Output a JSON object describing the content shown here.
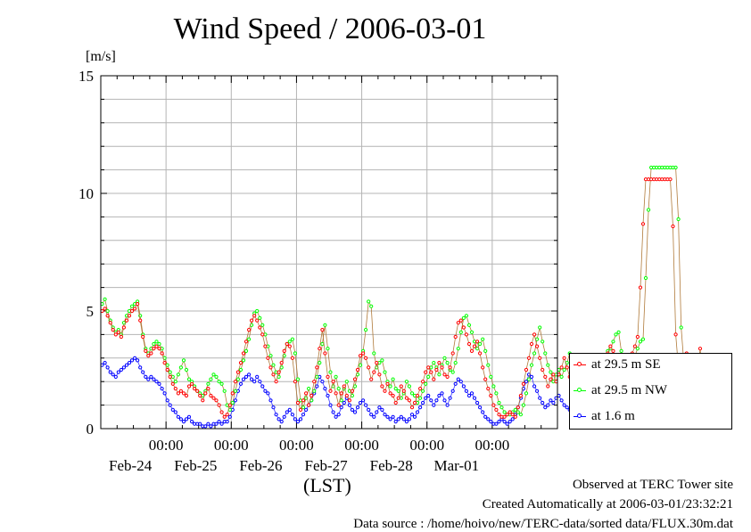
{
  "chart_data": {
    "type": "line",
    "title": "Wind Speed / 2006-03-01",
    "ylabel": "[m/s]",
    "xlabel": "(LST)",
    "ylim": [
      0,
      15
    ],
    "y_ticks": [
      "0",
      "5",
      "10",
      "15"
    ],
    "xlim_days": [
      "2006-02-23 00:00",
      "2006-03-02 00:00"
    ],
    "x_ticks": [
      {
        "time": "00:00",
        "date": "Feb-24"
      },
      {
        "time": "00:00",
        "date": "Feb-25"
      },
      {
        "time": "00:00",
        "date": "Feb-26"
      },
      {
        "time": "00:00",
        "date": "Feb-27"
      },
      {
        "time": "00:00",
        "date": "Feb-28"
      },
      {
        "time": "00:00",
        "date": "Mar-01"
      }
    ],
    "grid": true,
    "legend_position": "bottom-right",
    "interval_hours": 1,
    "series": [
      {
        "name": "at 29.5 m SE",
        "color": "#ff0000",
        "values": [
          5.0,
          5.1,
          4.8,
          4.5,
          4.2,
          4.0,
          4.1,
          3.9,
          4.3,
          4.6,
          4.8,
          5.0,
          5.1,
          5.3,
          4.6,
          3.9,
          3.3,
          3.1,
          3.2,
          3.4,
          3.5,
          3.4,
          3.2,
          2.8,
          2.5,
          2.2,
          1.9,
          1.7,
          1.5,
          1.6,
          1.5,
          1.4,
          1.8,
          1.9,
          1.7,
          1.6,
          1.4,
          1.2,
          1.5,
          1.7,
          1.4,
          1.3,
          1.2,
          1.0,
          0.7,
          0.5,
          0.6,
          1.0,
          1.5,
          2.0,
          2.4,
          2.8,
          3.2,
          3.7,
          4.2,
          4.6,
          4.8,
          4.6,
          4.3,
          4.0,
          3.5,
          3.0,
          2.6,
          2.3,
          2.0,
          2.4,
          2.8,
          3.3,
          3.6,
          3.5,
          3.0,
          2.0,
          1.1,
          0.8,
          1.2,
          1.5,
          1.0,
          1.4,
          2.0,
          2.6,
          3.4,
          4.2,
          3.2,
          2.2,
          1.6,
          2.0,
          1.5,
          1.0,
          1.5,
          1.8,
          1.4,
          1.2,
          1.6,
          2.1,
          2.5,
          3.1,
          3.2,
          3.0,
          2.6,
          2.1,
          2.4,
          2.8,
          2.3,
          1.8,
          1.6,
          1.9,
          1.5,
          1.4,
          1.1,
          1.3,
          1.8,
          1.6,
          1.3,
          1.2,
          0.9,
          1.1,
          1.4,
          1.7,
          2.0,
          2.4,
          2.6,
          2.4,
          2.1,
          2.5,
          2.8,
          2.6,
          2.3,
          2.2,
          2.6,
          3.2,
          3.9,
          4.5,
          4.6,
          4.3,
          4.0,
          3.6,
          3.3,
          3.5,
          3.7,
          3.2,
          2.6,
          2.1,
          1.7,
          1.4,
          1.0,
          0.8,
          0.6,
          0.5,
          0.5,
          0.6,
          0.7,
          0.6,
          0.5,
          0.9,
          1.4,
          1.9,
          2.5,
          3.0,
          3.6,
          4.0,
          3.5,
          3.0,
          2.5,
          2.2,
          1.8,
          2.1,
          2.3,
          2.0,
          2.3,
          2.6,
          3.0,
          2.6,
          2.2,
          1.8,
          1.5,
          1.2,
          1.3,
          1.5,
          1.7,
          2.0,
          2.3,
          2.6,
          2.7,
          2.9,
          3.0,
          2.9,
          3.2,
          3.5,
          3.3,
          2.8,
          2.4,
          2.1,
          2.3,
          2.6,
          2.9,
          3.2,
          3.5,
          3.9,
          6.0,
          8.7,
          10.6,
          10.6,
          10.6,
          10.6,
          10.6,
          10.6,
          10.6,
          10.6,
          10.6,
          10.6,
          8.6,
          4.0,
          2.6,
          2.2,
          2.6,
          3.2,
          3.0,
          2.4,
          2.0,
          2.3,
          3.4,
          2.0,
          1.8,
          1.6
        ]
      },
      {
        "name": "at 29.5 m NW",
        "color": "#00ff00",
        "values": [
          5.3,
          5.5,
          5.0,
          4.6,
          4.3,
          4.1,
          4.2,
          4.0,
          4.5,
          4.8,
          5.0,
          5.2,
          5.3,
          5.4,
          4.8,
          4.0,
          3.4,
          3.2,
          3.4,
          3.6,
          3.7,
          3.6,
          3.4,
          3.0,
          2.7,
          2.4,
          2.2,
          2.0,
          2.3,
          2.6,
          2.9,
          2.5,
          2.1,
          2.0,
          1.8,
          1.6,
          1.5,
          1.4,
          1.6,
          1.9,
          2.1,
          2.3,
          2.2,
          2.0,
          1.9,
          1.6,
          1.0,
          0.8,
          1.1,
          1.6,
          2.1,
          2.5,
          2.9,
          3.3,
          3.8,
          4.4,
          4.9,
          5.0,
          4.7,
          4.4,
          4.0,
          3.5,
          3.1,
          2.7,
          2.4,
          2.2,
          2.6,
          3.1,
          3.6,
          3.7,
          3.8,
          3.2,
          2.1,
          1.2,
          0.9,
          1.3,
          1.7,
          1.2,
          1.6,
          2.2,
          2.8,
          3.6,
          4.4,
          3.4,
          2.4,
          1.8,
          2.2,
          1.7,
          1.2,
          1.7,
          2.0,
          1.6,
          1.4,
          1.8,
          2.3,
          2.7,
          3.3,
          4.2,
          5.4,
          5.2,
          3.2,
          2.6,
          2.8,
          2.9,
          2.4,
          2.0,
          1.8,
          2.1,
          1.7,
          1.6,
          1.3,
          1.5,
          2.0,
          1.8,
          1.5,
          1.4,
          1.1,
          1.3,
          1.6,
          1.9,
          2.2,
          2.6,
          2.8,
          2.6,
          2.3,
          2.7,
          3.0,
          2.8,
          2.5,
          2.4,
          2.8,
          3.4,
          4.1,
          4.7,
          4.8,
          4.4,
          4.1,
          3.7,
          3.4,
          3.6,
          3.8,
          3.3,
          2.7,
          2.2,
          1.8,
          1.5,
          1.1,
          0.9,
          0.7,
          0.6,
          0.6,
          0.7,
          0.8,
          0.7,
          0.6,
          1.0,
          1.5,
          2.1,
          2.7,
          3.2,
          3.8,
          4.3,
          3.7,
          3.2,
          2.7,
          2.4,
          2.0,
          2.3,
          2.5,
          2.2,
          2.5,
          2.8,
          3.2,
          2.8,
          2.4,
          2.0,
          1.7,
          1.4,
          1.5,
          1.7,
          1.9,
          2.2,
          2.5,
          2.8,
          2.9,
          3.1,
          3.3,
          3.4,
          3.7,
          4.0,
          4.1,
          3.3,
          2.7,
          2.3,
          2.5,
          2.8,
          3.1,
          3.4,
          3.7,
          3.8,
          6.4,
          9.3,
          11.1,
          11.1,
          11.1,
          11.1,
          11.1,
          11.1,
          11.1,
          11.1,
          11.1,
          11.1,
          8.9,
          4.3,
          2.8,
          2.2,
          2.0,
          1.9,
          2.1,
          2.0,
          1.9,
          1.8,
          1.8,
          1.7,
          1.6,
          1.7
        ]
      },
      {
        "name": "at 1.6 m",
        "color": "#0000ff",
        "values": [
          2.7,
          2.8,
          2.6,
          2.4,
          2.3,
          2.2,
          2.4,
          2.5,
          2.6,
          2.7,
          2.8,
          2.9,
          3.0,
          2.9,
          2.6,
          2.4,
          2.2,
          2.1,
          2.2,
          2.1,
          2.0,
          1.9,
          1.7,
          1.5,
          1.2,
          1.0,
          0.8,
          0.7,
          0.5,
          0.4,
          0.3,
          0.4,
          0.5,
          0.3,
          0.2,
          0.2,
          0.2,
          0.1,
          0.1,
          0.2,
          0.1,
          0.2,
          0.2,
          0.3,
          0.2,
          0.3,
          0.3,
          0.5,
          0.8,
          1.2,
          1.6,
          1.9,
          2.1,
          2.2,
          2.3,
          2.1,
          2.0,
          2.2,
          2.0,
          1.8,
          1.6,
          1.5,
          1.2,
          0.9,
          0.6,
          0.4,
          0.3,
          0.5,
          0.7,
          0.8,
          0.6,
          0.4,
          0.3,
          0.4,
          0.6,
          0.8,
          1.0,
          1.2,
          1.5,
          1.8,
          2.2,
          2.0,
          1.7,
          1.4,
          1.0,
          0.7,
          0.5,
          0.6,
          0.9,
          1.1,
          1.3,
          1.0,
          0.8,
          0.7,
          0.9,
          1.1,
          1.2,
          1.0,
          0.8,
          0.6,
          0.5,
          0.7,
          0.9,
          0.8,
          0.6,
          0.5,
          0.4,
          0.5,
          0.3,
          0.4,
          0.5,
          0.4,
          0.3,
          0.4,
          0.6,
          0.5,
          0.7,
          0.9,
          1.1,
          1.3,
          1.4,
          1.2,
          1.0,
          1.2,
          1.4,
          1.5,
          1.2,
          1.0,
          1.3,
          1.6,
          1.9,
          2.1,
          2.0,
          1.8,
          1.6,
          1.4,
          1.5,
          1.3,
          1.1,
          0.9,
          0.7,
          0.5,
          0.4,
          0.3,
          0.2,
          0.2,
          0.3,
          0.4,
          0.3,
          0.2,
          0.3,
          0.4,
          0.6,
          0.9,
          1.3,
          1.7,
          2.0,
          2.3,
          2.2,
          1.8,
          1.6,
          1.3,
          1.1,
          0.9,
          1.0,
          1.2,
          1.1,
          1.3,
          1.4,
          1.2,
          1.0,
          0.9,
          0.8,
          0.9,
          1.0,
          1.1,
          1.2,
          1.4,
          1.3,
          1.2,
          1.1,
          1.3,
          1.4,
          1.3,
          1.1,
          1.0,
          0.9,
          1.0,
          1.2,
          1.3,
          1.5,
          1.4,
          1.2,
          1.1,
          1.0,
          1.2,
          1.4,
          1.6,
          1.5,
          1.3,
          1.1,
          1.3,
          1.5,
          1.7,
          1.9,
          2.0,
          1.8,
          1.5,
          1.3,
          1.1,
          1.0,
          0.9,
          1.0,
          1.2,
          1.4,
          1.6,
          1.3,
          1.0,
          0.8,
          0.7,
          0.9,
          1.0,
          1.1,
          0.9,
          0.8,
          0.7
        ]
      }
    ]
  },
  "footer": {
    "line1": "Observed at TERC Tower site",
    "line2": "Created Automatically at 2006-03-01/23:32:21",
    "line3": "Data source : /home/hoivo/new/TERC-data/sorted  data/FLUX.30m.dat"
  }
}
